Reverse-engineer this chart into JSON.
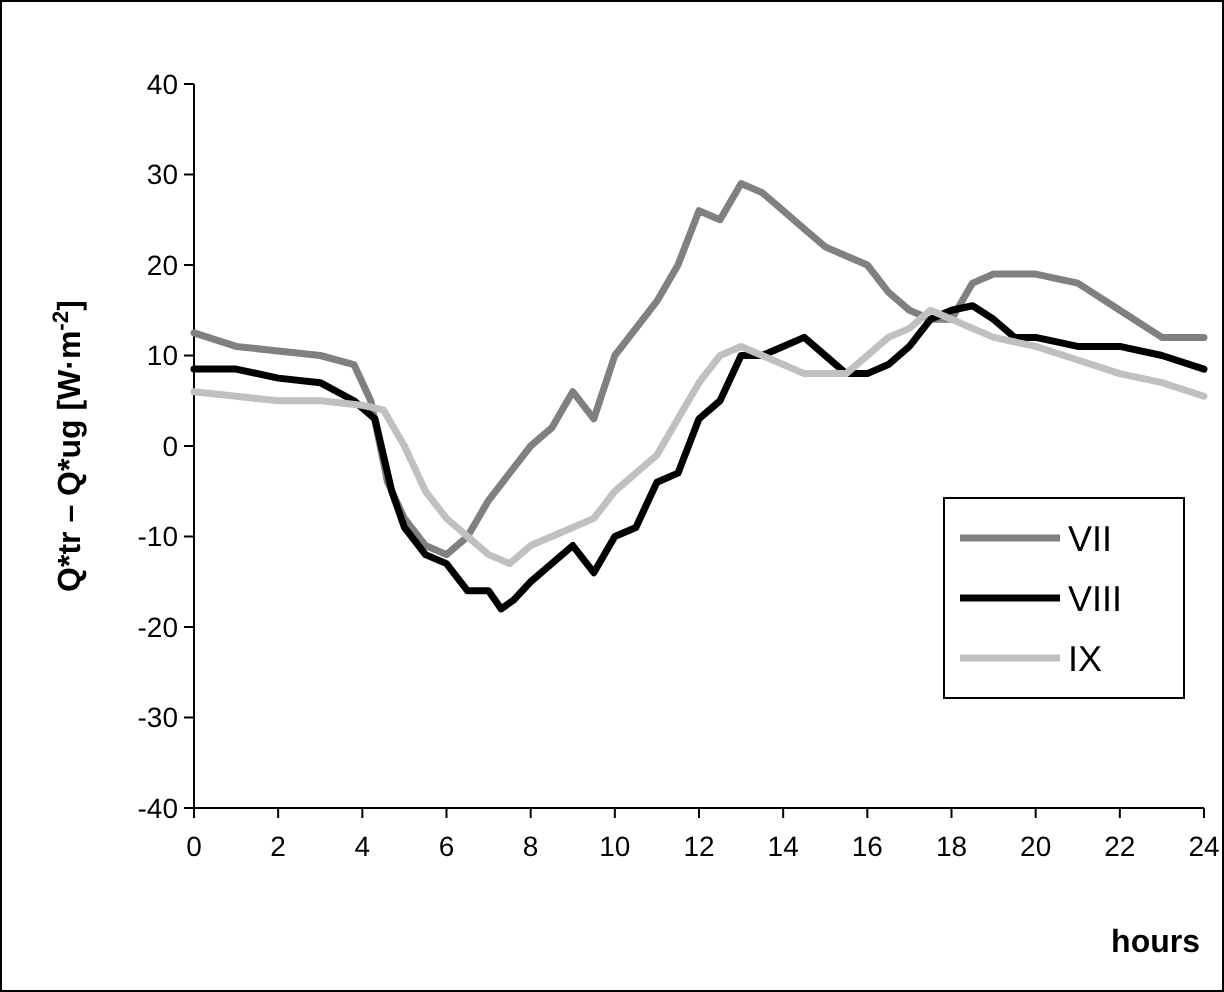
{
  "chart_data": {
    "type": "line",
    "xlabel": "hours",
    "ylabel": "Q*tr – Q*ug [W·m$^{-2}$]",
    "xlim": [
      0,
      24
    ],
    "ylim": [
      -40,
      40
    ],
    "xticks": [
      0,
      2,
      4,
      6,
      8,
      10,
      12,
      14,
      16,
      18,
      20,
      22,
      24
    ],
    "yticks": [
      -40,
      -30,
      -20,
      -10,
      0,
      10,
      20,
      30,
      40
    ],
    "grid": false,
    "legend": "bottom right",
    "marker": "none",
    "line_style": "solid",
    "series": [
      {
        "name": "VII",
        "color": "#808080",
        "x": [
          0,
          1,
          2,
          3,
          3.8,
          4.2,
          4.6,
          5,
          5.5,
          6,
          6.5,
          7,
          7.5,
          8,
          8.5,
          9,
          9.5,
          10,
          10.5,
          11,
          11.5,
          12,
          12.5,
          13,
          13.5,
          14,
          14.5,
          15,
          15.5,
          16,
          16.5,
          17,
          17.5,
          18,
          18.5,
          19,
          20,
          21,
          22,
          23,
          24
        ],
        "values": [
          12.5,
          11,
          10.5,
          10,
          9,
          5,
          -4,
          -8,
          -11,
          -12,
          -10,
          -6,
          -3,
          0,
          2,
          6,
          3,
          10,
          13,
          16,
          20,
          26,
          25,
          29,
          28,
          26,
          24,
          22,
          21,
          20,
          17,
          15,
          14,
          14,
          18,
          19,
          19,
          18,
          15,
          12,
          12
        ]
      },
      {
        "name": "VIII",
        "color": "#000000",
        "x": [
          0,
          1,
          2,
          3,
          3.8,
          4.3,
          4.7,
          5,
          5.5,
          6,
          6.5,
          7,
          7.3,
          7.6,
          8,
          8.5,
          9,
          9.5,
          10,
          10.5,
          11,
          11.5,
          12,
          12.5,
          13,
          13.5,
          14,
          14.5,
          15,
          15.5,
          16,
          16.5,
          17,
          17.5,
          18,
          18.5,
          19,
          19.5,
          20,
          21,
          22,
          23,
          24
        ],
        "values": [
          8.5,
          8.5,
          7.5,
          7,
          5,
          3,
          -5,
          -9,
          -12,
          -13,
          -16,
          -16,
          -18,
          -17,
          -15,
          -13,
          -11,
          -14,
          -10,
          -9,
          -4,
          -3,
          3,
          5,
          10,
          10,
          11,
          12,
          10,
          8,
          8,
          9,
          11,
          14,
          15,
          15.5,
          14,
          12,
          12,
          11,
          11,
          10,
          8.5
        ]
      },
      {
        "name": "IX",
        "color": "#c0c0c0",
        "x": [
          0,
          1,
          2,
          3,
          4,
          4.5,
          5,
          5.5,
          6,
          6.5,
          7,
          7.5,
          8,
          8.5,
          9,
          9.5,
          10,
          10.5,
          11,
          11.5,
          12,
          12.5,
          13,
          13.5,
          14,
          14.5,
          15,
          15.5,
          16,
          16.5,
          17,
          17.5,
          18,
          19,
          20,
          21,
          22,
          23,
          24
        ],
        "values": [
          6,
          5.5,
          5,
          5,
          4.5,
          4,
          0,
          -5,
          -8,
          -10,
          -12,
          -13,
          -11,
          -10,
          -9,
          -8,
          -5,
          -3,
          -1,
          3,
          7,
          10,
          11,
          10,
          9,
          8,
          8,
          8,
          10,
          12,
          13,
          15,
          14,
          12,
          11,
          9.5,
          8,
          7,
          5.5
        ]
      }
    ]
  }
}
